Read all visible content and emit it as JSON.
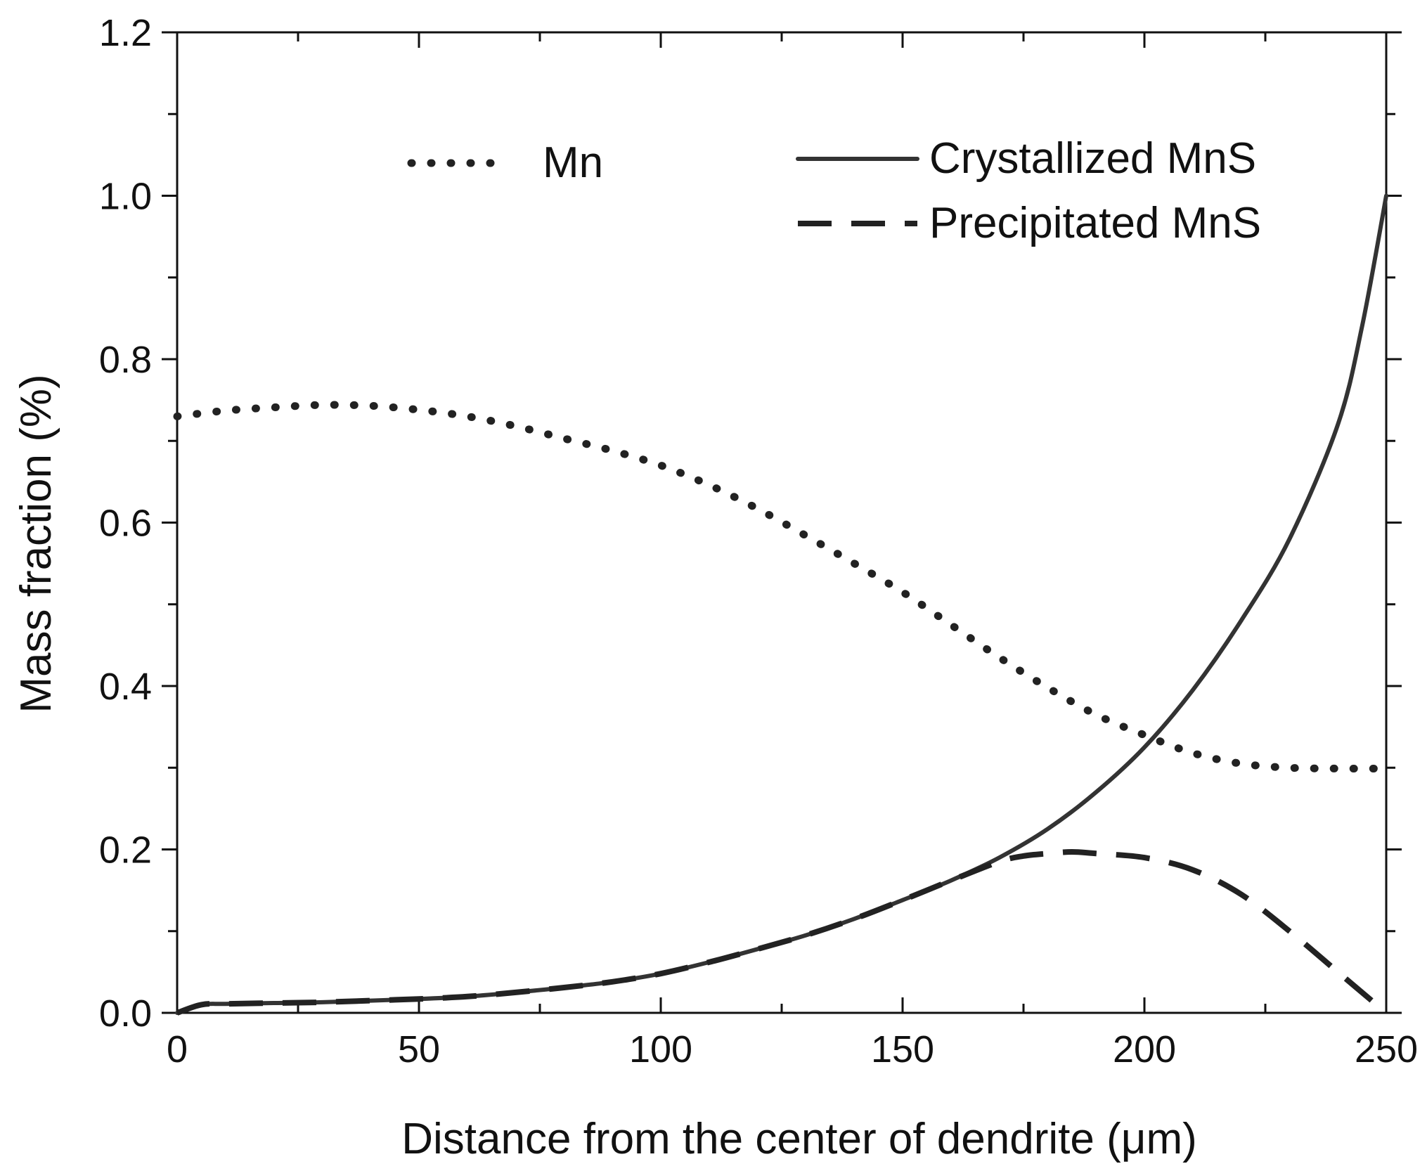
{
  "chart_data": {
    "type": "line",
    "title": "",
    "xlabel": "Distance from the center of dendrite (μm)",
    "ylabel": "Mass fraction (%)",
    "xlim": [
      0,
      250
    ],
    "ylim": [
      0,
      1.2
    ],
    "x_ticks": [
      "0",
      "50",
      "100",
      "150",
      "200",
      "250"
    ],
    "y_ticks": [
      "0.0",
      "0.2",
      "0.4",
      "0.6",
      "0.8",
      "1.0",
      "1.2"
    ],
    "grid": false,
    "series": [
      {
        "name": "Mn",
        "style": "dotted",
        "color": "#222222",
        "x": [
          0,
          10,
          20,
          30,
          40,
          50,
          60,
          70,
          80,
          90,
          100,
          110,
          120,
          130,
          140,
          150,
          160,
          170,
          180,
          190,
          200,
          210,
          220,
          230,
          240,
          250
        ],
        "y": [
          0.73,
          0.737,
          0.741,
          0.744,
          0.743,
          0.738,
          0.73,
          0.718,
          0.703,
          0.688,
          0.67,
          0.646,
          0.617,
          0.584,
          0.55,
          0.515,
          0.475,
          0.435,
          0.398,
          0.365,
          0.34,
          0.318,
          0.305,
          0.3,
          0.299,
          0.299
        ]
      },
      {
        "name": "Crystallized MnS",
        "style": "solid",
        "color": "#333333",
        "x": [
          0,
          5,
          10,
          20,
          30,
          40,
          50,
          60,
          70,
          80,
          90,
          100,
          110,
          120,
          130,
          140,
          150,
          160,
          170,
          180,
          190,
          200,
          210,
          220,
          230,
          240,
          245,
          250
        ],
        "y": [
          0.0,
          0.01,
          0.011,
          0.012,
          0.013,
          0.015,
          0.017,
          0.02,
          0.025,
          0.031,
          0.038,
          0.048,
          0.062,
          0.078,
          0.095,
          0.115,
          0.138,
          0.162,
          0.19,
          0.225,
          0.27,
          0.325,
          0.395,
          0.48,
          0.58,
          0.72,
          0.84,
          1.0
        ]
      },
      {
        "name": "Precipitated MnS",
        "style": "dashed",
        "color": "#222222",
        "x": [
          0,
          5,
          10,
          20,
          30,
          40,
          50,
          60,
          70,
          80,
          90,
          100,
          110,
          120,
          130,
          140,
          150,
          160,
          170,
          175,
          180,
          185,
          190,
          200,
          210,
          220,
          230,
          240,
          250
        ],
        "y": [
          0.0,
          0.01,
          0.011,
          0.012,
          0.013,
          0.015,
          0.017,
          0.02,
          0.025,
          0.031,
          0.038,
          0.048,
          0.062,
          0.078,
          0.095,
          0.115,
          0.138,
          0.162,
          0.185,
          0.192,
          0.195,
          0.197,
          0.195,
          0.19,
          0.175,
          0.145,
          0.1,
          0.05,
          0.0
        ]
      }
    ],
    "legend": {
      "placement": "top",
      "entries": [
        "Mn",
        "Crystallized MnS",
        "Precipitated MnS"
      ]
    }
  }
}
